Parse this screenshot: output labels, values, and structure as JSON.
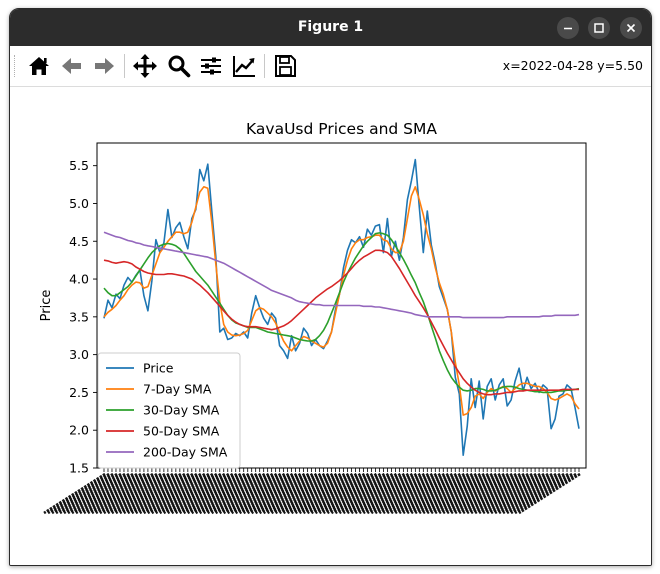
{
  "window": {
    "title": "Figure 1"
  },
  "toolbar": {
    "buttons": [
      {
        "name": "home-icon"
      },
      {
        "name": "back-arrow-icon"
      },
      {
        "name": "forward-arrow-icon"
      },
      {
        "name": "pan-icon"
      },
      {
        "name": "zoom-icon"
      },
      {
        "name": "configure-subplots-icon"
      },
      {
        "name": "edit-axes-icon"
      },
      {
        "name": "save-icon"
      }
    ],
    "coordinates": "x=2022-04-28 y=5.50"
  },
  "chart_data": {
    "type": "line",
    "title": "KavaUsd Prices and SMA",
    "xlabel": "",
    "ylabel": "Price",
    "ylim": [
      1.5,
      5.8
    ],
    "yticks": [
      "1.5",
      "2.0",
      "2.5",
      "3.0",
      "3.5",
      "4.0",
      "4.5",
      "5.0",
      "5.5"
    ],
    "grid": false,
    "legend_position": "lower-left",
    "x_count": 120,
    "series": [
      {
        "name": "Price",
        "color": "#1f77b4",
        "values": [
          3.48,
          3.72,
          3.62,
          3.8,
          3.74,
          3.92,
          4.02,
          3.96,
          4.05,
          4.12,
          3.78,
          3.58,
          3.98,
          4.52,
          4.35,
          4.48,
          4.92,
          4.55,
          4.68,
          4.75,
          4.56,
          4.4,
          4.8,
          4.92,
          5.45,
          5.3,
          5.52,
          4.9,
          4.3,
          3.3,
          3.35,
          3.2,
          3.22,
          3.28,
          3.25,
          3.3,
          3.22,
          3.55,
          3.78,
          3.62,
          3.48,
          3.4,
          3.55,
          3.48,
          3.12,
          3.05,
          2.95,
          3.25,
          3.05,
          3.15,
          3.35,
          3.28,
          3.12,
          3.2,
          3.12,
          3.08,
          3.18,
          3.3,
          3.6,
          3.8,
          4.15,
          4.38,
          4.52,
          4.48,
          4.56,
          4.42,
          4.66,
          4.58,
          4.7,
          4.72,
          4.35,
          4.8,
          4.3,
          4.5,
          4.25,
          4.55,
          5.05,
          5.3,
          5.58,
          4.95,
          4.35,
          4.9,
          4.45,
          4.2,
          3.9,
          3.75,
          3.6,
          3.3,
          2.7,
          2.48,
          1.67,
          2.05,
          2.68,
          2.3,
          2.65,
          2.15,
          2.58,
          2.68,
          2.4,
          2.6,
          2.68,
          2.32,
          2.4,
          2.65,
          2.82,
          2.52,
          2.7,
          2.55,
          2.62,
          2.5,
          2.6,
          2.55,
          2.02,
          2.15,
          2.45,
          2.48,
          2.6,
          2.55,
          2.3,
          2.02
        ]
      },
      {
        "name": "7-Day SMA",
        "color": "#ff7f0e",
        "values": [
          3.5,
          3.56,
          3.6,
          3.65,
          3.72,
          3.78,
          3.86,
          3.92,
          3.96,
          3.95,
          3.88,
          3.9,
          4.05,
          4.2,
          4.35,
          4.42,
          4.5,
          4.56,
          4.62,
          4.62,
          4.6,
          4.62,
          4.75,
          4.95,
          5.15,
          5.22,
          5.2,
          4.75,
          4.2,
          3.7,
          3.4,
          3.3,
          3.26,
          3.25,
          3.26,
          3.28,
          3.32,
          3.45,
          3.58,
          3.62,
          3.6,
          3.55,
          3.5,
          3.42,
          3.3,
          3.18,
          3.1,
          3.05,
          3.12,
          3.18,
          3.24,
          3.22,
          3.18,
          3.15,
          3.12,
          3.1,
          3.15,
          3.3,
          3.55,
          3.8,
          4.05,
          4.25,
          4.4,
          4.48,
          4.52,
          4.52,
          4.55,
          4.56,
          4.58,
          4.58,
          4.52,
          4.5,
          4.4,
          4.35,
          4.35,
          4.5,
          4.8,
          5.1,
          5.22,
          5.05,
          4.85,
          4.6,
          4.4,
          4.15,
          3.95,
          3.8,
          3.6,
          3.3,
          2.9,
          2.6,
          2.2,
          2.22,
          2.3,
          2.45,
          2.48,
          2.42,
          2.5,
          2.55,
          2.52,
          2.55,
          2.58,
          2.55,
          2.5,
          2.55,
          2.6,
          2.62,
          2.62,
          2.6,
          2.58,
          2.58,
          2.55,
          2.5,
          2.42,
          2.4,
          2.42,
          2.45,
          2.48,
          2.45,
          2.35,
          2.28
        ]
      },
      {
        "name": "30-Day SMA",
        "color": "#2ca02c",
        "values": [
          3.88,
          3.82,
          3.78,
          3.78,
          3.82,
          3.86,
          3.9,
          3.96,
          4.04,
          4.12,
          4.2,
          4.28,
          4.35,
          4.4,
          4.44,
          4.46,
          4.47,
          4.46,
          4.44,
          4.4,
          4.34,
          4.26,
          4.18,
          4.1,
          4.04,
          3.98,
          3.92,
          3.84,
          3.76,
          3.68,
          3.6,
          3.52,
          3.46,
          3.42,
          3.4,
          3.38,
          3.36,
          3.36,
          3.36,
          3.34,
          3.32,
          3.3,
          3.29,
          3.28,
          3.27,
          3.26,
          3.25,
          3.24,
          3.22,
          3.2,
          3.19,
          3.18,
          3.18,
          3.2,
          3.25,
          3.32,
          3.42,
          3.55,
          3.68,
          3.82,
          3.96,
          4.08,
          4.18,
          4.28,
          4.36,
          4.44,
          4.5,
          4.55,
          4.6,
          4.61,
          4.6,
          4.58,
          4.52,
          4.44,
          4.35,
          4.26,
          4.16,
          4.05,
          3.95,
          3.82,
          3.7,
          3.55,
          3.38,
          3.22,
          3.05,
          2.92,
          2.8,
          2.7,
          2.63,
          2.57,
          2.53,
          2.52,
          2.53,
          2.55,
          2.55,
          2.54,
          2.52,
          2.52,
          2.53,
          2.55,
          2.57,
          2.58,
          2.58,
          2.57,
          2.55,
          2.54,
          2.53,
          2.52,
          2.51,
          2.51,
          2.5,
          2.5,
          2.5,
          2.51,
          2.52,
          2.52,
          2.53,
          2.53,
          2.54,
          2.55
        ]
      },
      {
        "name": "50-Day SMA",
        "color": "#d62728",
        "values": [
          4.25,
          4.24,
          4.22,
          4.21,
          4.22,
          4.23,
          4.22,
          4.2,
          4.16,
          4.13,
          4.1,
          4.08,
          4.07,
          4.06,
          4.06,
          4.06,
          4.07,
          4.07,
          4.06,
          4.05,
          4.04,
          4.02,
          4.0,
          3.96,
          3.92,
          3.87,
          3.82,
          3.76,
          3.7,
          3.64,
          3.58,
          3.52,
          3.47,
          3.43,
          3.4,
          3.38,
          3.37,
          3.37,
          3.37,
          3.36,
          3.35,
          3.34,
          3.33,
          3.34,
          3.36,
          3.38,
          3.41,
          3.45,
          3.5,
          3.55,
          3.6,
          3.65,
          3.7,
          3.75,
          3.79,
          3.83,
          3.87,
          3.9,
          3.94,
          3.98,
          4.03,
          4.08,
          4.14,
          4.2,
          4.25,
          4.29,
          4.32,
          4.35,
          4.38,
          4.38,
          4.37,
          4.35,
          4.3,
          4.22,
          4.14,
          4.05,
          3.96,
          3.87,
          3.78,
          3.7,
          3.62,
          3.53,
          3.43,
          3.33,
          3.22,
          3.12,
          3.02,
          2.93,
          2.84,
          2.76,
          2.68,
          2.62,
          2.57,
          2.53,
          2.5,
          2.48,
          2.47,
          2.47,
          2.48,
          2.48,
          2.49,
          2.5,
          2.5,
          2.51,
          2.52,
          2.52,
          2.53,
          2.53,
          2.53,
          2.53,
          2.53,
          2.53,
          2.53,
          2.53,
          2.53,
          2.54,
          2.54,
          2.54,
          2.54,
          2.54
        ]
      },
      {
        "name": "200-Day SMA",
        "color": "#9467bd",
        "values": [
          4.62,
          4.6,
          4.58,
          4.56,
          4.55,
          4.53,
          4.51,
          4.5,
          4.48,
          4.47,
          4.45,
          4.44,
          4.43,
          4.42,
          4.41,
          4.4,
          4.39,
          4.38,
          4.37,
          4.36,
          4.35,
          4.34,
          4.33,
          4.32,
          4.31,
          4.3,
          4.29,
          4.27,
          4.25,
          4.23,
          4.21,
          4.18,
          4.15,
          4.12,
          4.09,
          4.06,
          4.03,
          4.0,
          3.97,
          3.94,
          3.91,
          3.88,
          3.85,
          3.83,
          3.81,
          3.79,
          3.77,
          3.75,
          3.72,
          3.7,
          3.69,
          3.68,
          3.67,
          3.66,
          3.66,
          3.65,
          3.65,
          3.65,
          3.65,
          3.65,
          3.65,
          3.65,
          3.65,
          3.65,
          3.65,
          3.64,
          3.64,
          3.64,
          3.63,
          3.63,
          3.62,
          3.61,
          3.6,
          3.59,
          3.58,
          3.57,
          3.56,
          3.55,
          3.53,
          3.52,
          3.51,
          3.5,
          3.5,
          3.5,
          3.5,
          3.5,
          3.5,
          3.5,
          3.5,
          3.5,
          3.49,
          3.49,
          3.49,
          3.49,
          3.49,
          3.49,
          3.49,
          3.49,
          3.49,
          3.49,
          3.49,
          3.5,
          3.5,
          3.5,
          3.5,
          3.5,
          3.5,
          3.5,
          3.5,
          3.5,
          3.51,
          3.51,
          3.51,
          3.52,
          3.52,
          3.52,
          3.52,
          3.52,
          3.52,
          3.53
        ]
      }
    ]
  }
}
